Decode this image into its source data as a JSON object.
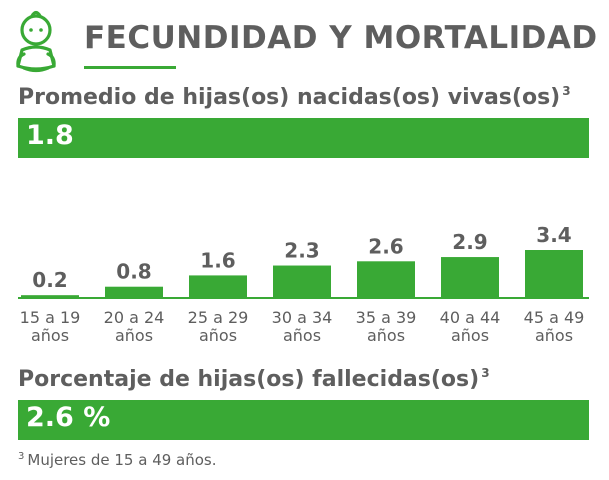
{
  "header": {
    "title": "FECUNDIDAD Y MORTALIDAD",
    "icon": "baby-icon",
    "accent_color": "#39a935"
  },
  "average": {
    "label": "Promedio de hijas(os) nacidas(os) vivas(os)",
    "footnote_ref": "3",
    "value": "1.8"
  },
  "chart_data": {
    "type": "bar",
    "categories": [
      "15 a 19 años",
      "20 a 24 años",
      "25 a 29 años",
      "30 a 34 años",
      "35 a 39 años",
      "40 a 44 años",
      "45 a 49 años"
    ],
    "category_lines": [
      [
        "15 a 19",
        "años"
      ],
      [
        "20 a 24",
        "años"
      ],
      [
        "25 a 29",
        "años"
      ],
      [
        "30 a 34",
        "años"
      ],
      [
        "35 a 39",
        "años"
      ],
      [
        "40 a 44",
        "años"
      ],
      [
        "45 a 49",
        "años"
      ]
    ],
    "values": [
      0.2,
      0.8,
      1.6,
      2.3,
      2.6,
      2.9,
      3.4
    ],
    "data_labels": [
      "0.2",
      "0.8",
      "1.6",
      "2.3",
      "2.6",
      "2.9",
      "3.4"
    ],
    "title": "",
    "xlabel": "",
    "ylabel": "",
    "ylim": [
      0,
      3.4
    ],
    "grid": false,
    "bar_color": "#39a935"
  },
  "mortality": {
    "label": "Porcentaje de hijas(os) fallecidas(os)",
    "footnote_ref": "3",
    "value": "2.6 %"
  },
  "footnote": {
    "marker": "3",
    "text": "Mujeres de 15 a 49 años."
  }
}
